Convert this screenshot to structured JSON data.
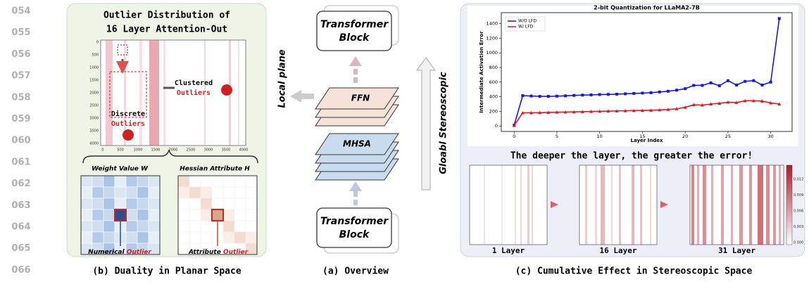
{
  "line_numbers": [
    "054",
    "055",
    "056",
    "057",
    "058",
    "059",
    "060",
    "061",
    "062",
    "063",
    "064",
    "065",
    "066"
  ],
  "panel_b": {
    "title_lines": [
      "Outlier Distribution of",
      "16 Layer Attention-Out"
    ],
    "heatmap": {
      "yticks": [
        0,
        500,
        1000,
        1500,
        2000,
        2500,
        3000,
        3500,
        4000
      ],
      "xticks": [
        0,
        500,
        1000,
        1500,
        2000,
        2500,
        3000,
        3500,
        4000
      ]
    },
    "clustered": {
      "word": "Clustered",
      "outlier": "Outliers"
    },
    "discrete": {
      "word": "Discrete",
      "outlier": "Outliers"
    },
    "weight_label": "Weight Value W",
    "hessian_label": "Hessian Attribute H",
    "numerical": {
      "word": "Numerical",
      "outlier": "Outlier"
    },
    "attribute": {
      "word": "Attribute",
      "outlier": "Outlier"
    },
    "caption": "(b) Duality in Planar Space"
  },
  "panel_a": {
    "top_block": [
      "Transformer",
      "Block"
    ],
    "ffn": "FFN",
    "mhsa": "MHSA",
    "bottom_block": [
      "Transformer",
      "Block"
    ],
    "local": "Local plane",
    "global": "Gloabl Stereoscopic",
    "caption": "(a) Overview"
  },
  "chart_data": {
    "type": "line",
    "title": "2-bit Quantization for LLaMA2-7B",
    "x_label": "Layer Index",
    "y_label": "Intermediate Activation Error",
    "x": [
      0,
      1,
      2,
      3,
      4,
      5,
      6,
      7,
      8,
      9,
      10,
      11,
      12,
      13,
      14,
      15,
      16,
      17,
      18,
      19,
      20,
      21,
      22,
      23,
      24,
      25,
      26,
      27,
      28,
      29,
      30,
      31
    ],
    "series": [
      {
        "name": "W/O LFD",
        "color": "#1515ee",
        "marker": "square",
        "values": [
          10,
          415,
          410,
          405,
          405,
          408,
          412,
          418,
          422,
          425,
          430,
          432,
          435,
          440,
          445,
          450,
          455,
          465,
          475,
          490,
          510,
          555,
          555,
          590,
          550,
          620,
          560,
          610,
          620,
          560,
          600,
          1470
        ]
      },
      {
        "name": "W/ LFD",
        "color": "#e8141c",
        "marker": "triangle",
        "values": [
          5,
          180,
          180,
          182,
          185,
          188,
          190,
          192,
          195,
          198,
          200,
          203,
          205,
          208,
          210,
          212,
          215,
          220,
          225,
          235,
          255,
          290,
          285,
          300,
          310,
          325,
          320,
          345,
          345,
          340,
          315,
          300
        ]
      }
    ],
    "xlim": [
      -1.5,
      32.5
    ],
    "ylim": [
      -75,
      1550
    ],
    "xticks": [
      0,
      5,
      10,
      15,
      20,
      25,
      30
    ],
    "yticks": [
      0,
      200,
      400,
      600,
      800,
      1000,
      1200,
      1400
    ],
    "grid": false,
    "legend": "upper left"
  },
  "panel_c": {
    "headline": "The deeper the layer, the greater the error!",
    "heatmap_labels": [
      "1 Layer",
      "16 Layer",
      "31 Layer"
    ],
    "colorbar_ticks": [
      "0.012",
      "0.009",
      "0.006",
      "0.003",
      "0.000"
    ],
    "caption": "(c) Cumulative Effect in Stereoscopic Space"
  }
}
